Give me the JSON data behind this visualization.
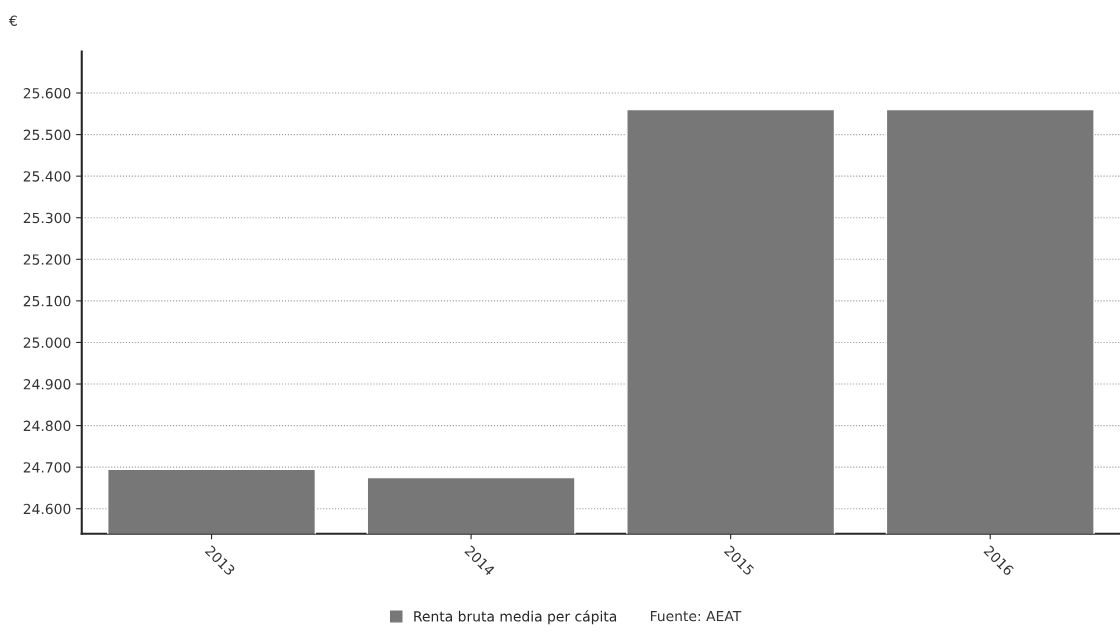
{
  "chart_data": {
    "type": "bar",
    "ylabel": "€",
    "categories": [
      "2013",
      "2014",
      "2015",
      "2016"
    ],
    "series": [
      {
        "name": "Renta bruta media per cápita",
        "color": "#777777",
        "values": [
          24695,
          24675,
          25560,
          25560
        ]
      }
    ],
    "ylim": [
      24540,
      25700
    ],
    "yticks": [
      {
        "value": 24600,
        "label": "24.600"
      },
      {
        "value": 24700,
        "label": "24.700"
      },
      {
        "value": 24800,
        "label": "24.800"
      },
      {
        "value": 24900,
        "label": "24.900"
      },
      {
        "value": 25000,
        "label": "25.000"
      },
      {
        "value": 25100,
        "label": "25.100"
      },
      {
        "value": 25200,
        "label": "25.200"
      },
      {
        "value": 25300,
        "label": "25.300"
      },
      {
        "value": 25400,
        "label": "25.400"
      },
      {
        "value": 25500,
        "label": "25.500"
      },
      {
        "value": 25600,
        "label": "25.600"
      }
    ],
    "grid": "y",
    "legend": "bottom",
    "annotations": [
      "Fuente: AEAT"
    ]
  }
}
